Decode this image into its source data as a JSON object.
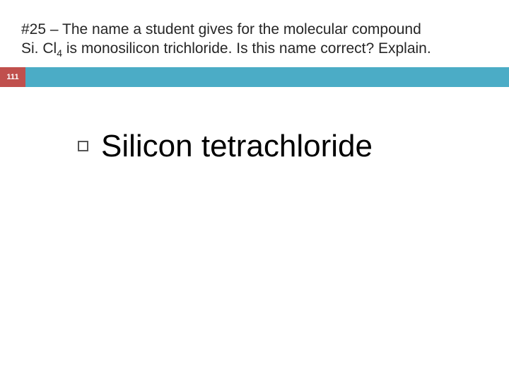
{
  "slide": {
    "title_line1": "#25 – The name a student gives for the molecular compound",
    "title_line2_pre": "Si. Cl",
    "title_line2_sub": "4",
    "title_line2_post": " is monosilicon trichloride.  Is this name correct? Explain.",
    "number": "111",
    "answer": "Silicon tetrachloride"
  },
  "colors": {
    "accent_red": "#c0504d",
    "accent_teal": "#4bacc6",
    "text_dark": "#262626",
    "text_black": "#000000",
    "number_text": "#ffffff",
    "bullet_border": "#555555",
    "background": "#ffffff"
  }
}
